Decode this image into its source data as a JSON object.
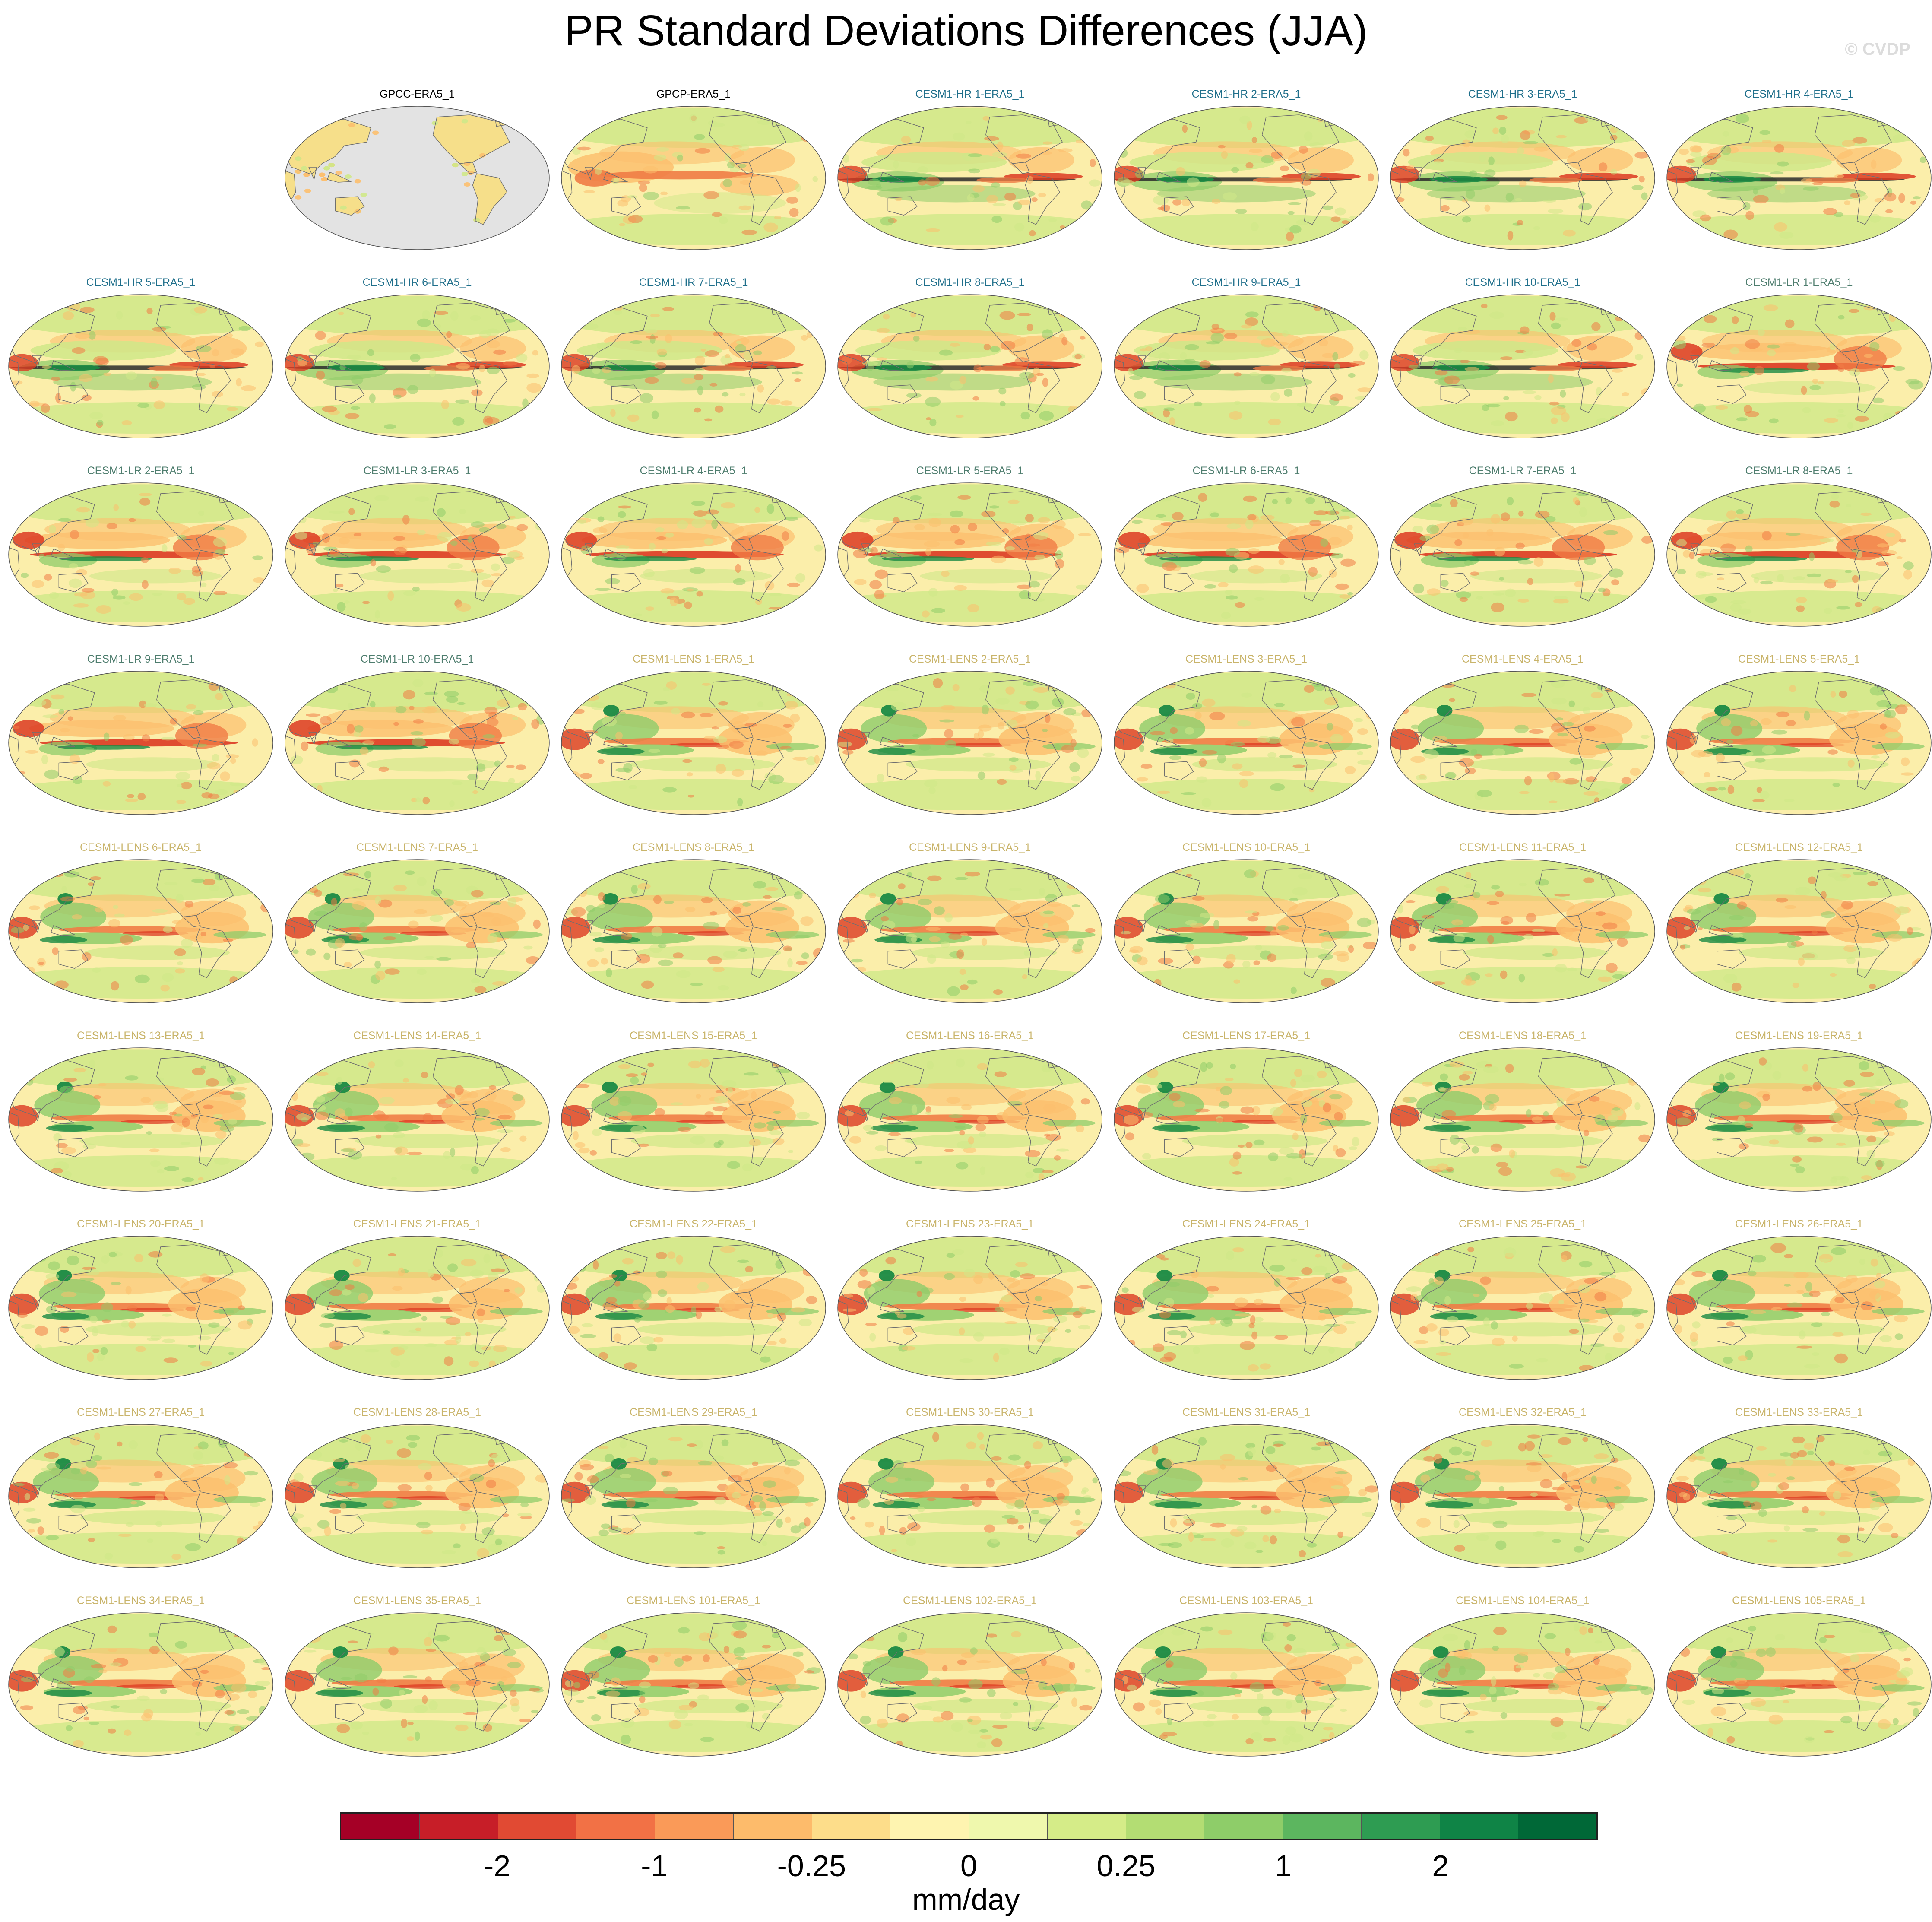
{
  "figure": {
    "title": "PR Standard Deviations Differences (JJA)",
    "watermark": "© CVDP"
  },
  "panels": [
    {
      "title": "GPCC-ERA5_1",
      "group": "obs",
      "pattern": "landonly"
    },
    {
      "title": "GPCP-ERA5_1",
      "group": "obs",
      "pattern": "gpcp"
    },
    {
      "title": "CESM1-HR 1-ERA5_1",
      "group": "hr",
      "pattern": "hr"
    },
    {
      "title": "CESM1-HR 2-ERA5_1",
      "group": "hr",
      "pattern": "hr"
    },
    {
      "title": "CESM1-HR 3-ERA5_1",
      "group": "hr",
      "pattern": "hr"
    },
    {
      "title": "CESM1-HR 4-ERA5_1",
      "group": "hr",
      "pattern": "hr"
    },
    {
      "title": "CESM1-HR 5-ERA5_1",
      "group": "hr",
      "pattern": "hr"
    },
    {
      "title": "CESM1-HR 6-ERA5_1",
      "group": "hr",
      "pattern": "hr"
    },
    {
      "title": "CESM1-HR 7-ERA5_1",
      "group": "hr",
      "pattern": "hr"
    },
    {
      "title": "CESM1-HR 8-ERA5_1",
      "group": "hr",
      "pattern": "hr"
    },
    {
      "title": "CESM1-HR 9-ERA5_1",
      "group": "hr",
      "pattern": "hr"
    },
    {
      "title": "CESM1-HR 10-ERA5_1",
      "group": "hr",
      "pattern": "hr"
    },
    {
      "title": "CESM1-LR 1-ERA5_1",
      "group": "lr",
      "pattern": "lr"
    },
    {
      "title": "CESM1-LR 2-ERA5_1",
      "group": "lr",
      "pattern": "lr"
    },
    {
      "title": "CESM1-LR 3-ERA5_1",
      "group": "lr",
      "pattern": "lr"
    },
    {
      "title": "CESM1-LR 4-ERA5_1",
      "group": "lr",
      "pattern": "lr"
    },
    {
      "title": "CESM1-LR 5-ERA5_1",
      "group": "lr",
      "pattern": "lr"
    },
    {
      "title": "CESM1-LR 6-ERA5_1",
      "group": "lr",
      "pattern": "lr"
    },
    {
      "title": "CESM1-LR 7-ERA5_1",
      "group": "lr",
      "pattern": "lr"
    },
    {
      "title": "CESM1-LR 8-ERA5_1",
      "group": "lr",
      "pattern": "lr"
    },
    {
      "title": "CESM1-LR 9-ERA5_1",
      "group": "lr",
      "pattern": "lr"
    },
    {
      "title": "CESM1-LR 10-ERA5_1",
      "group": "lr",
      "pattern": "lr"
    },
    {
      "title": "CESM1-LENS 1-ERA5_1",
      "group": "lens",
      "pattern": "lens"
    },
    {
      "title": "CESM1-LENS 2-ERA5_1",
      "group": "lens",
      "pattern": "lens"
    },
    {
      "title": "CESM1-LENS 3-ERA5_1",
      "group": "lens",
      "pattern": "lens"
    },
    {
      "title": "CESM1-LENS 4-ERA5_1",
      "group": "lens",
      "pattern": "lens"
    },
    {
      "title": "CESM1-LENS 5-ERA5_1",
      "group": "lens",
      "pattern": "lens"
    },
    {
      "title": "CESM1-LENS 6-ERA5_1",
      "group": "lens",
      "pattern": "lens"
    },
    {
      "title": "CESM1-LENS 7-ERA5_1",
      "group": "lens",
      "pattern": "lens"
    },
    {
      "title": "CESM1-LENS 8-ERA5_1",
      "group": "lens",
      "pattern": "lens"
    },
    {
      "title": "CESM1-LENS 9-ERA5_1",
      "group": "lens",
      "pattern": "lens"
    },
    {
      "title": "CESM1-LENS 10-ERA5_1",
      "group": "lens",
      "pattern": "lens"
    },
    {
      "title": "CESM1-LENS 11-ERA5_1",
      "group": "lens",
      "pattern": "lens"
    },
    {
      "title": "CESM1-LENS 12-ERA5_1",
      "group": "lens",
      "pattern": "lens"
    },
    {
      "title": "CESM1-LENS 13-ERA5_1",
      "group": "lens",
      "pattern": "lens"
    },
    {
      "title": "CESM1-LENS 14-ERA5_1",
      "group": "lens",
      "pattern": "lens"
    },
    {
      "title": "CESM1-LENS 15-ERA5_1",
      "group": "lens",
      "pattern": "lens"
    },
    {
      "title": "CESM1-LENS 16-ERA5_1",
      "group": "lens",
      "pattern": "lens"
    },
    {
      "title": "CESM1-LENS 17-ERA5_1",
      "group": "lens",
      "pattern": "lens"
    },
    {
      "title": "CESM1-LENS 18-ERA5_1",
      "group": "lens",
      "pattern": "lens"
    },
    {
      "title": "CESM1-LENS 19-ERA5_1",
      "group": "lens",
      "pattern": "lens"
    },
    {
      "title": "CESM1-LENS 20-ERA5_1",
      "group": "lens",
      "pattern": "lens"
    },
    {
      "title": "CESM1-LENS 21-ERA5_1",
      "group": "lens",
      "pattern": "lens"
    },
    {
      "title": "CESM1-LENS 22-ERA5_1",
      "group": "lens",
      "pattern": "lens"
    },
    {
      "title": "CESM1-LENS 23-ERA5_1",
      "group": "lens",
      "pattern": "lens"
    },
    {
      "title": "CESM1-LENS 24-ERA5_1",
      "group": "lens",
      "pattern": "lens"
    },
    {
      "title": "CESM1-LENS 25-ERA5_1",
      "group": "lens",
      "pattern": "lens"
    },
    {
      "title": "CESM1-LENS 26-ERA5_1",
      "group": "lens",
      "pattern": "lens"
    },
    {
      "title": "CESM1-LENS 27-ERA5_1",
      "group": "lens",
      "pattern": "lens"
    },
    {
      "title": "CESM1-LENS 28-ERA5_1",
      "group": "lens",
      "pattern": "lens"
    },
    {
      "title": "CESM1-LENS 29-ERA5_1",
      "group": "lens",
      "pattern": "lens"
    },
    {
      "title": "CESM1-LENS 30-ERA5_1",
      "group": "lens",
      "pattern": "lens"
    },
    {
      "title": "CESM1-LENS 31-ERA5_1",
      "group": "lens",
      "pattern": "lens"
    },
    {
      "title": "CESM1-LENS 32-ERA5_1",
      "group": "lens",
      "pattern": "lens"
    },
    {
      "title": "CESM1-LENS 33-ERA5_1",
      "group": "lens",
      "pattern": "lens"
    },
    {
      "title": "CESM1-LENS 34-ERA5_1",
      "group": "lens",
      "pattern": "lens"
    },
    {
      "title": "CESM1-LENS 35-ERA5_1",
      "group": "lens",
      "pattern": "lens"
    },
    {
      "title": "CESM1-LENS 101-ERA5_1",
      "group": "lens",
      "pattern": "lens"
    },
    {
      "title": "CESM1-LENS 102-ERA5_1",
      "group": "lens",
      "pattern": "lens"
    },
    {
      "title": "CESM1-LENS 103-ERA5_1",
      "group": "lens",
      "pattern": "lens"
    },
    {
      "title": "CESM1-LENS 104-ERA5_1",
      "group": "lens",
      "pattern": "lens"
    },
    {
      "title": "CESM1-LENS 105-ERA5_1",
      "group": "lens",
      "pattern": "lens"
    }
  ],
  "title_colors": {
    "obs": "#000000",
    "hr": "#1f6f8b",
    "lr": "#4e7d6e",
    "lens": "#c9b46a"
  },
  "map_colors": {
    "ocean_base": "#fbeeaa",
    "land_gray": "#e3e3e3",
    "coastline": "#6f6f6f",
    "strong_dry": "#dc3a22",
    "dry": "#f07c45",
    "weak_dry": "#fcbf6e",
    "weak_wet": "#cfe888",
    "wet": "#8fcc6a",
    "strong_wet": "#1a8a44"
  },
  "colorbar": {
    "colors": [
      "#a50026",
      "#c71e28",
      "#e14a33",
      "#f27145",
      "#fa9a58",
      "#fdbb6b",
      "#fddd8a",
      "#fef4b0",
      "#eff8ad",
      "#d5ec88",
      "#b3dd73",
      "#8ecd69",
      "#5cb65f",
      "#2e9c52",
      "#0f8446",
      "#006837"
    ],
    "labels": [
      "-2",
      "-1",
      "-0.25",
      "0",
      "0.25",
      "1",
      "2"
    ],
    "label_boundaries": [
      2,
      4,
      6,
      8,
      10,
      12,
      14
    ],
    "units": "mm/day"
  }
}
